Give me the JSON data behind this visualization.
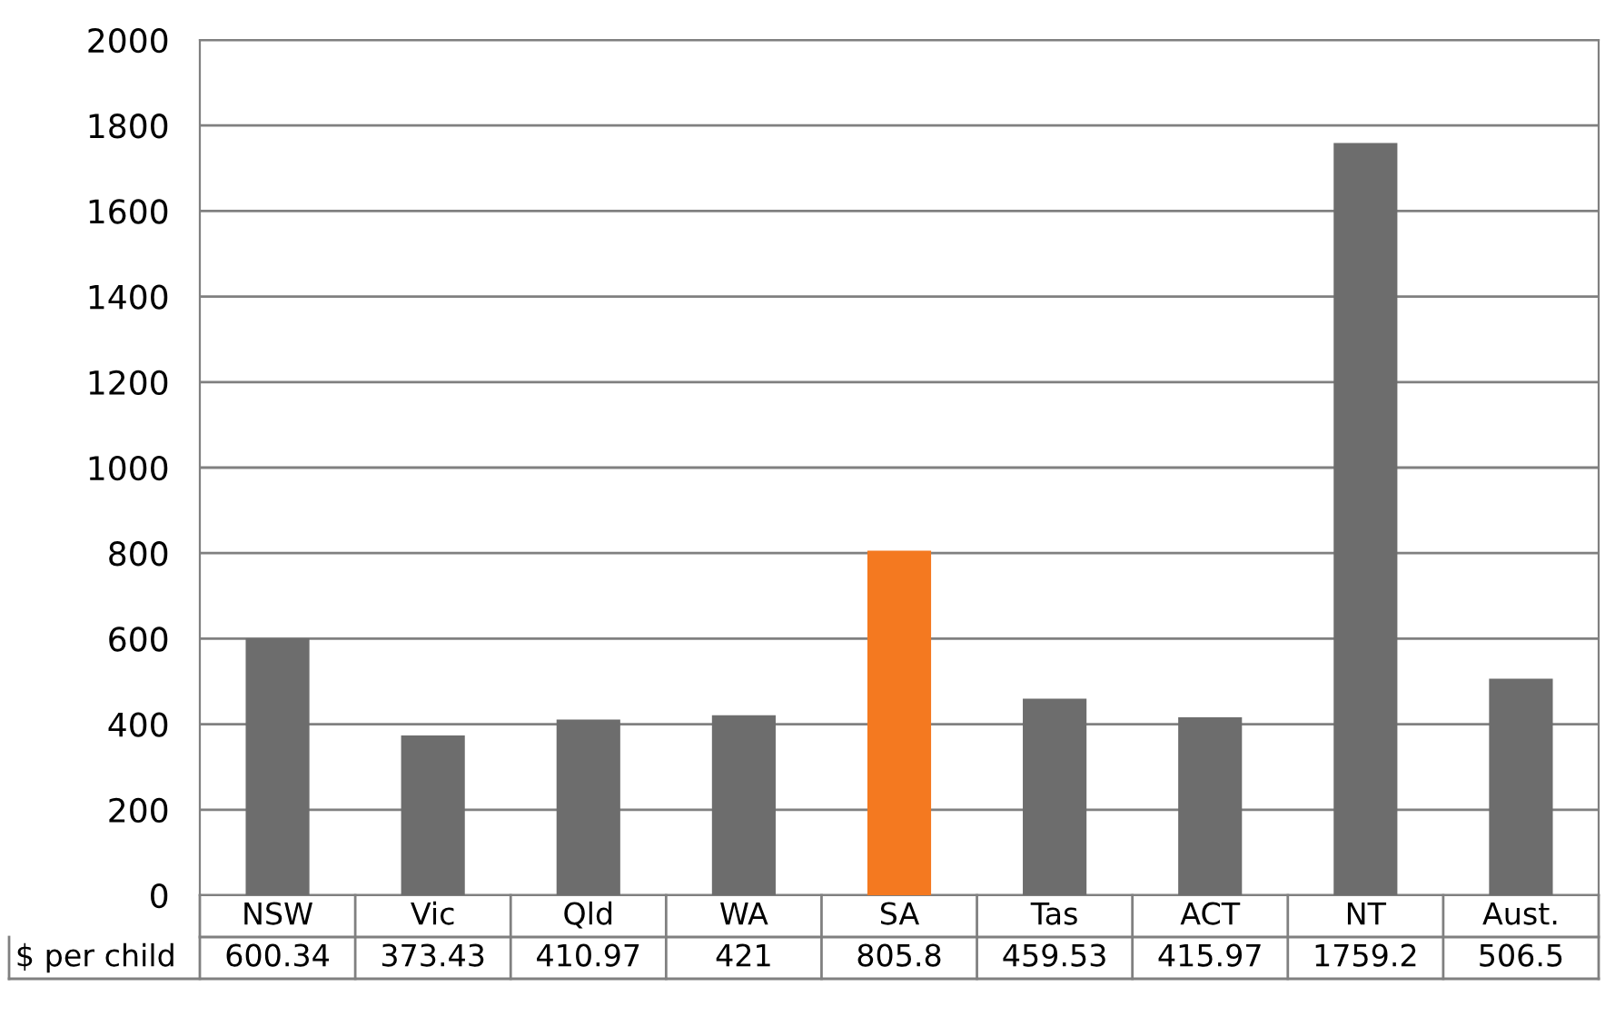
{
  "chart_data": {
    "type": "bar",
    "categories": [
      "NSW",
      "Vic",
      "Qld",
      "WA",
      "SA",
      "Tas",
      "ACT",
      "NT",
      "Aust."
    ],
    "series": [
      {
        "name": "$ per child",
        "colors": [
          "#6d6d6d",
          "#6d6d6d",
          "#6d6d6d",
          "#6d6d6d",
          "#f47920",
          "#6d6d6d",
          "#6d6d6d",
          "#6d6d6d",
          "#6d6d6d"
        ],
        "values": [
          600.34,
          373.43,
          410.97,
          421,
          805.8,
          459.53,
          415.97,
          1759.2,
          506.5
        ]
      }
    ],
    "ylim": [
      0,
      2000
    ],
    "yticks": [
      0,
      200,
      400,
      600,
      800,
      1000,
      1200,
      1400,
      1600,
      1800,
      2000
    ],
    "grid": "y",
    "data_labels": true,
    "legend": false
  }
}
